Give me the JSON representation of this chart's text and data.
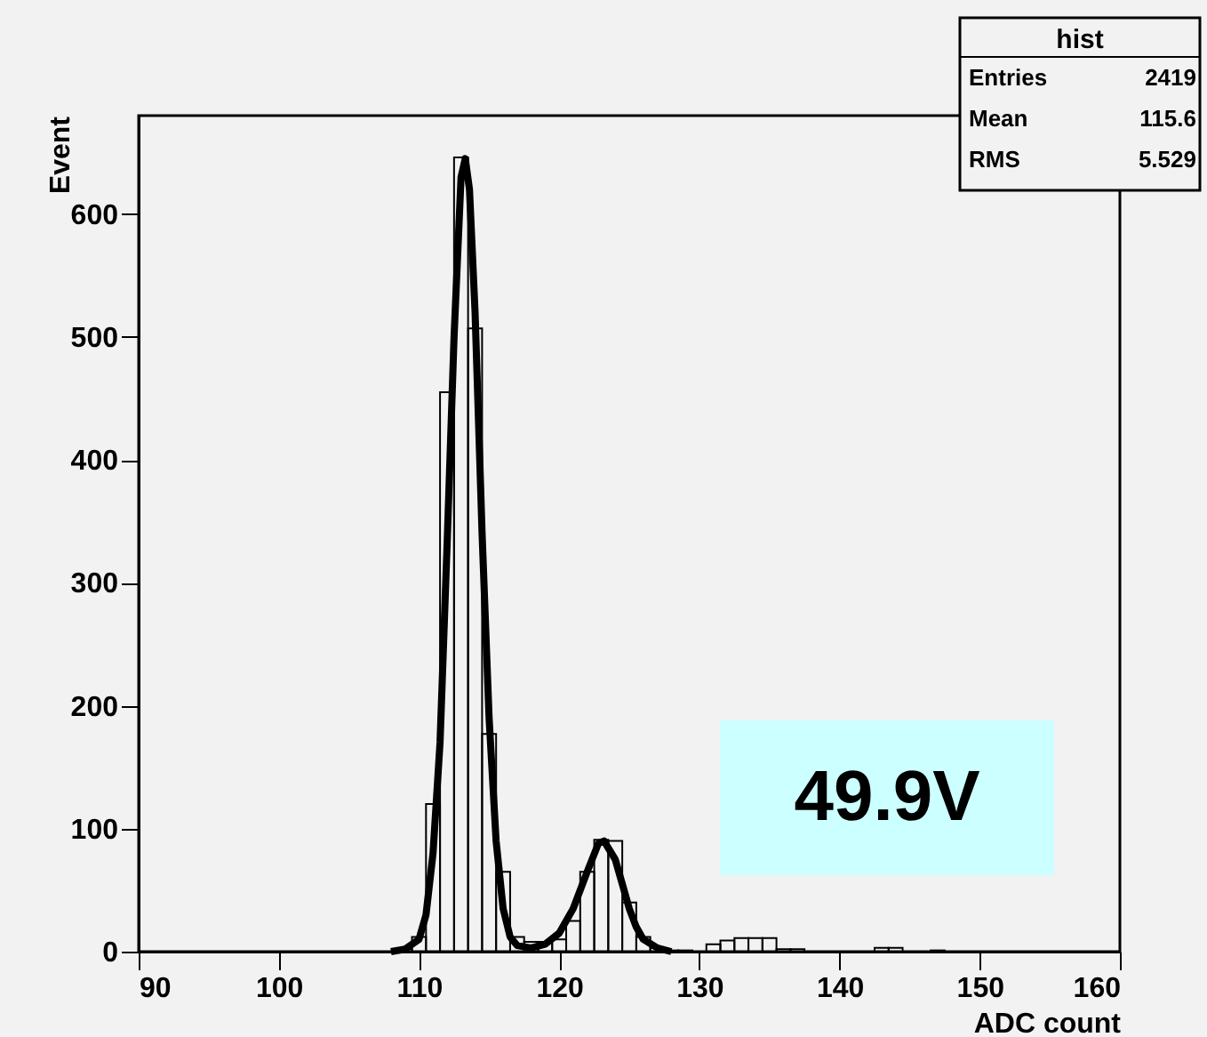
{
  "chart_data": {
    "type": "histogram",
    "xlabel": "ADC count",
    "ylabel": "Event",
    "bins": [
      106.5,
      107.5,
      108.5,
      109.5,
      110.5,
      111.5,
      112.5,
      113.5,
      114.5,
      115.5,
      116.5,
      117.5,
      118.5,
      119.5,
      120.5,
      121.5,
      122.5,
      123.5,
      124.5,
      125.5,
      126.5,
      127.5,
      128.5,
      129.5,
      130.5,
      131.5,
      132.5,
      133.5,
      134.5,
      135.5,
      136.5,
      137.5,
      138.5,
      139.5,
      140.5,
      141.5,
      142.5,
      143.5,
      144.5,
      145.5,
      146.5,
      147.5
    ],
    "values": [
      0,
      0,
      2,
      12,
      120,
      455,
      646,
      507,
      177,
      65,
      12,
      8,
      8,
      10,
      25,
      65,
      91,
      90,
      40,
      12,
      3,
      1,
      1,
      0,
      6,
      9,
      11,
      11,
      11,
      2,
      2,
      0,
      0,
      0,
      0,
      0,
      3,
      3,
      0,
      0,
      1
    ],
    "color": "#000000",
    "series": [
      {
        "type": "line",
        "color": "#000000",
        "x": [
          108,
          109,
          110,
          110.5,
          111,
          111.5,
          112,
          112.5,
          113,
          113.3,
          113.6,
          114,
          114.5,
          115,
          115.5,
          116,
          116.5,
          117,
          118,
          119,
          120,
          121,
          122,
          122.8,
          123.2,
          124,
          124.5,
          125,
          125.5,
          126,
          127,
          128
        ],
        "values": [
          0,
          2,
          10,
          30,
          80,
          170,
          330,
          500,
          630,
          645,
          620,
          520,
          340,
          190,
          90,
          35,
          12,
          5,
          3,
          6,
          15,
          35,
          65,
          88,
          90,
          75,
          55,
          35,
          20,
          10,
          3,
          0
        ]
      }
    ],
    "xlim": [
      90,
      160
    ],
    "xticks": [
      90,
      100,
      110,
      120,
      130,
      140,
      150,
      160
    ],
    "ylim": [
      0,
      680
    ],
    "yticks": [
      0,
      100,
      200,
      300,
      400,
      500,
      600
    ],
    "grid": false,
    "annotations": [
      "hist",
      "Entries 2419",
      "Mean 115.6",
      "RMS 5.529",
      "49.9V"
    ]
  }
}
